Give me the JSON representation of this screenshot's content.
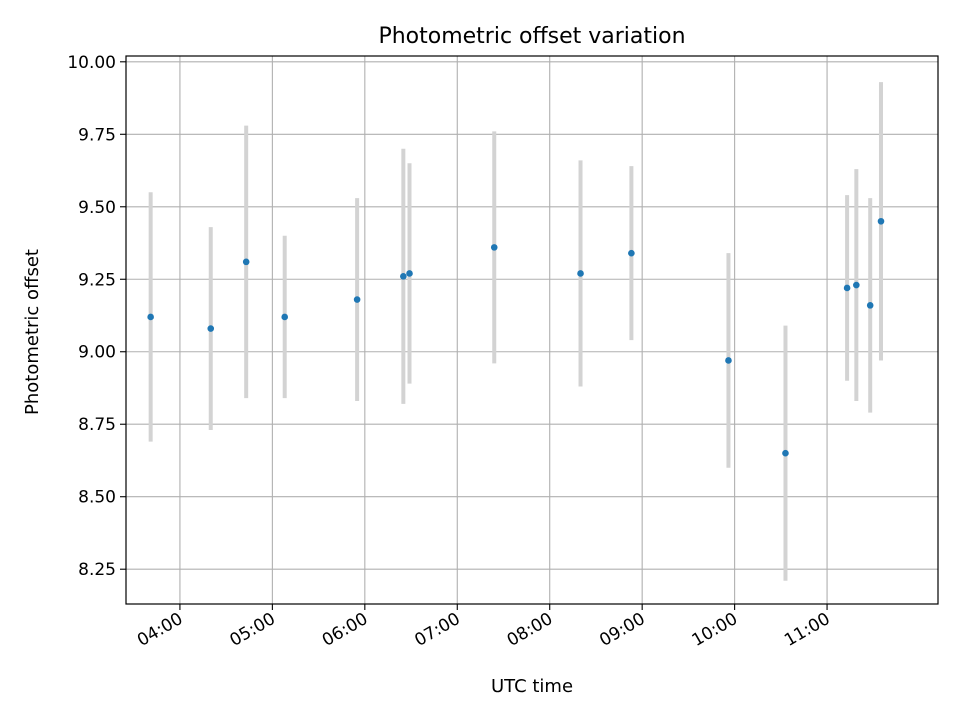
{
  "chart_data": {
    "type": "scatter",
    "title": "Photometric offset variation",
    "xlabel": "UTC time",
    "ylabel": "Photometric offset",
    "grid": true,
    "xlim": [
      "03:25",
      "12:12"
    ],
    "ylim": [
      8.13,
      10.02
    ],
    "x_ticks": [
      "04:00",
      "05:00",
      "06:00",
      "07:00",
      "08:00",
      "09:00",
      "10:00",
      "11:00"
    ],
    "y_ticks": [
      8.25,
      8.5,
      8.75,
      9.0,
      9.25,
      9.5,
      9.75,
      10.0
    ],
    "y_tick_labels": [
      "8.25",
      "8.50",
      "8.75",
      "9.00",
      "9.25",
      "9.50",
      "9.75",
      "10.00"
    ],
    "colors": {
      "point": "#1f77b4",
      "errorbar": "#d3d3d3",
      "grid": "#b0b0b0"
    },
    "series": [
      {
        "points": [
          {
            "x": "03:41",
            "y": 9.12,
            "err": 0.43
          },
          {
            "x": "04:20",
            "y": 9.08,
            "err": 0.35
          },
          {
            "x": "04:43",
            "y": 9.31,
            "err": 0.47
          },
          {
            "x": "05:08",
            "y": 9.12,
            "err": 0.28
          },
          {
            "x": "05:55",
            "y": 9.18,
            "err": 0.35
          },
          {
            "x": "06:25",
            "y": 9.26,
            "err": 0.44
          },
          {
            "x": "06:29",
            "y": 9.27,
            "err": 0.38
          },
          {
            "x": "07:24",
            "y": 9.36,
            "err": 0.4
          },
          {
            "x": "08:20",
            "y": 9.27,
            "err": 0.39
          },
          {
            "x": "08:53",
            "y": 9.34,
            "err": 0.3
          },
          {
            "x": "09:56",
            "y": 8.97,
            "err": 0.37
          },
          {
            "x": "10:33",
            "y": 8.65,
            "err": 0.44
          },
          {
            "x": "11:13",
            "y": 9.22,
            "err": 0.32
          },
          {
            "x": "11:19",
            "y": 9.23,
            "err": 0.4
          },
          {
            "x": "11:28",
            "y": 9.16,
            "err": 0.37
          },
          {
            "x": "11:35",
            "y": 9.45,
            "err": 0.48
          }
        ]
      }
    ]
  }
}
